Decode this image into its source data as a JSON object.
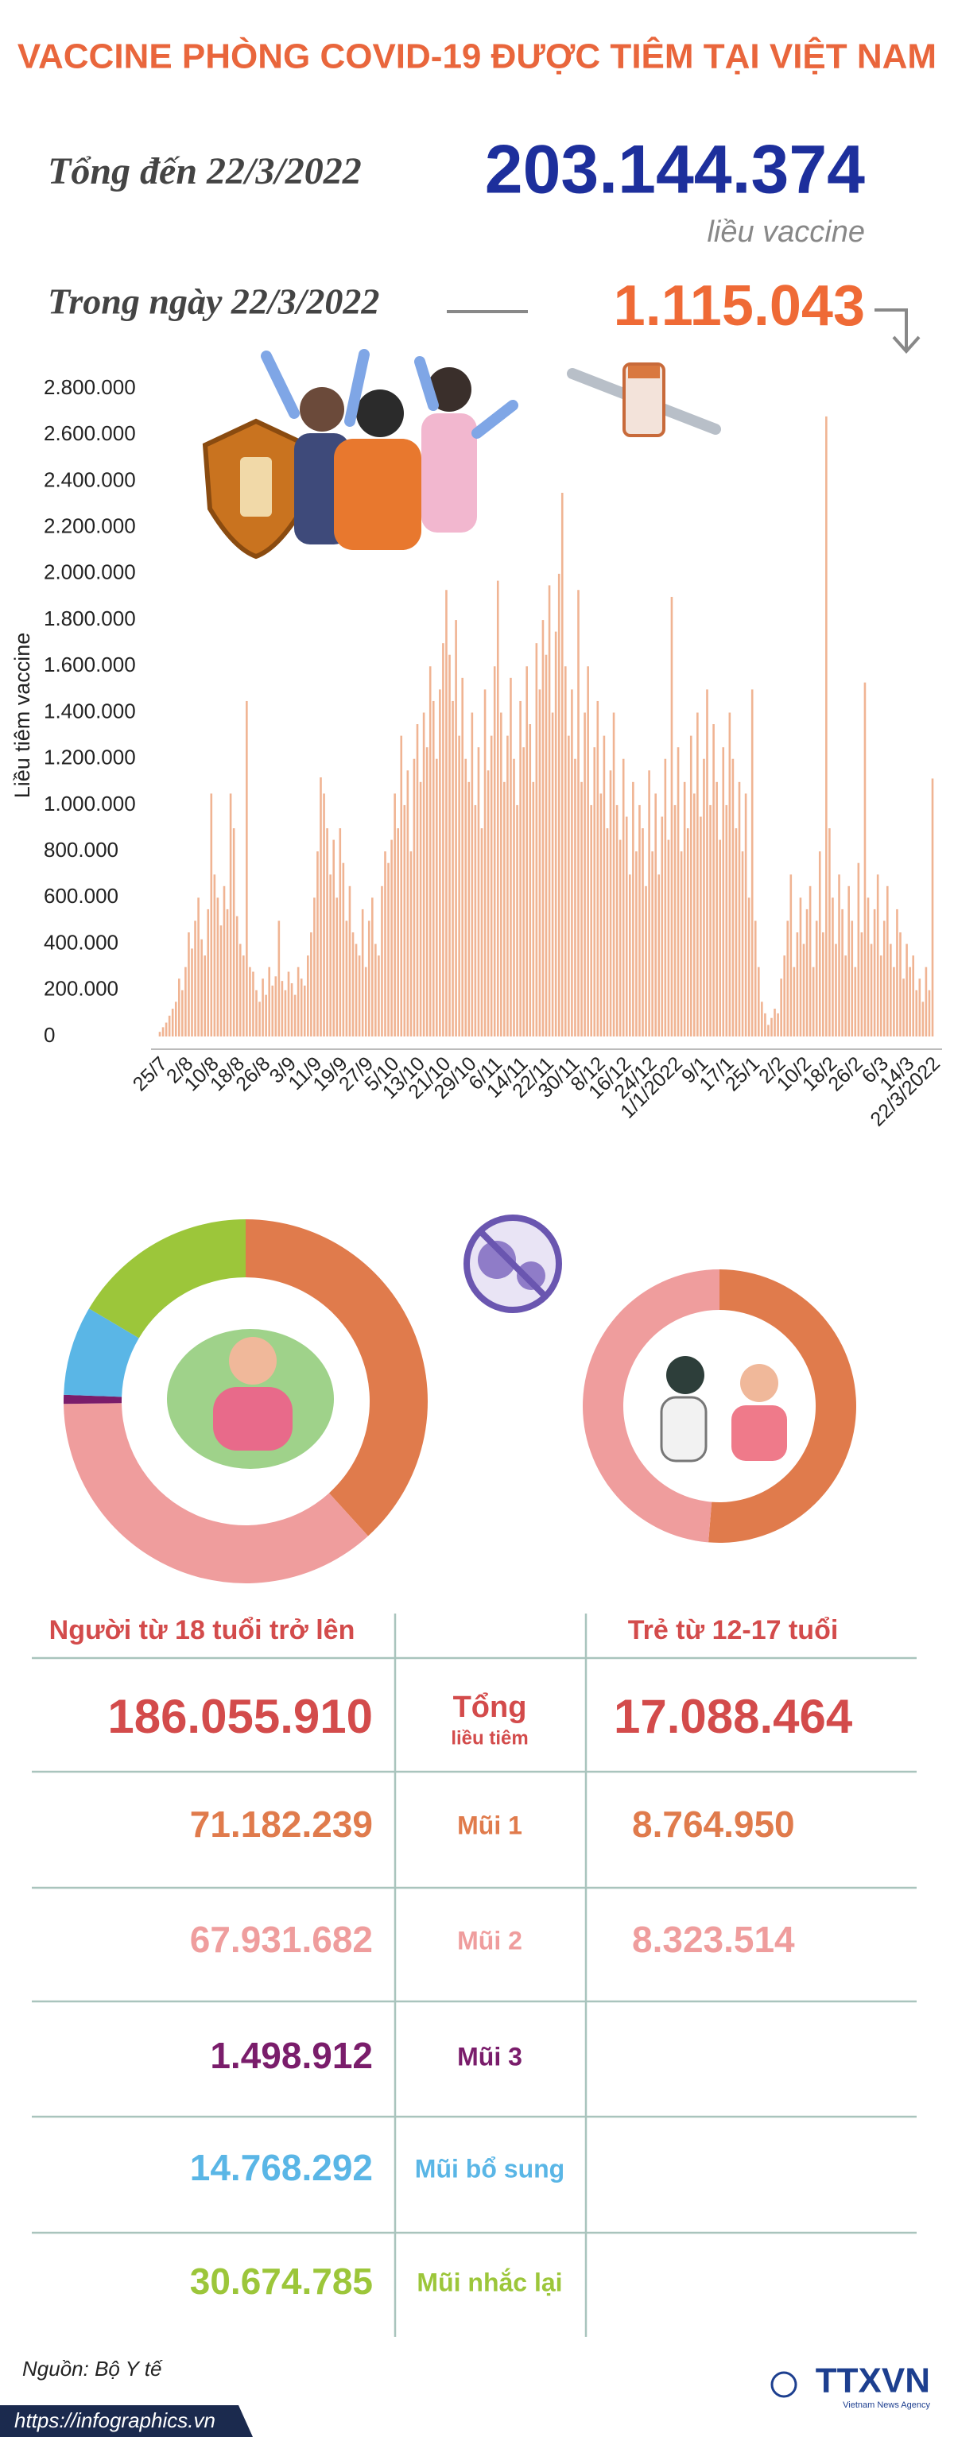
{
  "header": {
    "title": "VACCINE PHÒNG COVID-19 ĐƯỢC TIÊM TẠI VIỆT NAM",
    "total_label": "Tổng đến 22/3/2022",
    "total_value": "203.144.374",
    "total_unit": "liều vaccine",
    "day_label": "Trong ngày 22/3/2022",
    "day_value": "1.115.043"
  },
  "chart_data": {
    "type": "bar",
    "y_label": "Liều tiêm vaccine",
    "color": "#f0b493",
    "categories": [
      "25/7",
      null,
      null,
      null,
      null,
      null,
      null,
      null,
      "2/8",
      null,
      null,
      null,
      null,
      null,
      null,
      null,
      "10/8",
      null,
      null,
      null,
      null,
      null,
      null,
      null,
      "18/8",
      null,
      null,
      null,
      null,
      null,
      null,
      null,
      "26/8",
      null,
      null,
      null,
      null,
      null,
      null,
      null,
      "3/9",
      null,
      null,
      null,
      null,
      null,
      null,
      null,
      "11/9",
      null,
      null,
      null,
      null,
      null,
      null,
      null,
      "19/9",
      null,
      null,
      null,
      null,
      null,
      null,
      null,
      "27/9",
      null,
      null,
      null,
      null,
      null,
      null,
      null,
      "5/10",
      null,
      null,
      null,
      null,
      null,
      null,
      null,
      "13/10",
      null,
      null,
      null,
      null,
      null,
      null,
      null,
      "21/10",
      null,
      null,
      null,
      null,
      null,
      null,
      null,
      "29/10",
      null,
      null,
      null,
      null,
      null,
      null,
      null,
      "6/11",
      null,
      null,
      null,
      null,
      null,
      null,
      null,
      "14/11",
      null,
      null,
      null,
      null,
      null,
      null,
      null,
      "22/11",
      null,
      null,
      null,
      null,
      null,
      null,
      null,
      "30/11",
      null,
      null,
      null,
      null,
      null,
      null,
      null,
      "8/12",
      null,
      null,
      null,
      null,
      null,
      null,
      null,
      "16/12",
      null,
      null,
      null,
      null,
      null,
      null,
      null,
      "24/12",
      null,
      null,
      null,
      null,
      null,
      null,
      null,
      "1/1/2022",
      null,
      null,
      null,
      null,
      null,
      null,
      null,
      "9/1",
      null,
      null,
      null,
      null,
      null,
      null,
      null,
      "17/1",
      null,
      null,
      null,
      null,
      null,
      null,
      null,
      "25/1",
      null,
      null,
      null,
      null,
      null,
      null,
      null,
      "2/2",
      null,
      null,
      null,
      null,
      null,
      null,
      null,
      "10/2",
      null,
      null,
      null,
      null,
      null,
      null,
      null,
      "18/2",
      null,
      null,
      null,
      null,
      null,
      null,
      null,
      "26/2",
      null,
      null,
      null,
      null,
      null,
      null,
      null,
      "6/3",
      null,
      null,
      null,
      null,
      null,
      null,
      null,
      "14/3",
      null,
      null,
      null,
      null,
      null,
      null,
      null,
      "22/3/2022"
    ],
    "values": [
      20000,
      40000,
      60000,
      90000,
      120000,
      150000,
      250000,
      200000,
      300000,
      450000,
      380000,
      500000,
      600000,
      420000,
      350000,
      550000,
      1050000,
      700000,
      600000,
      480000,
      650000,
      550000,
      1050000,
      900000,
      520000,
      400000,
      350000,
      1450000,
      300000,
      280000,
      200000,
      150000,
      250000,
      180000,
      300000,
      220000,
      260000,
      500000,
      240000,
      200000,
      280000,
      230000,
      180000,
      300000,
      250000,
      220000,
      350000,
      450000,
      600000,
      800000,
      1120000,
      1050000,
      900000,
      700000,
      850000,
      600000,
      900000,
      750000,
      500000,
      650000,
      450000,
      400000,
      350000,
      550000,
      300000,
      500000,
      600000,
      400000,
      350000,
      650000,
      800000,
      750000,
      850000,
      1050000,
      900000,
      1300000,
      1000000,
      1150000,
      800000,
      1200000,
      1350000,
      1100000,
      1400000,
      1250000,
      1600000,
      1450000,
      1200000,
      1500000,
      1700000,
      1930000,
      1650000,
      1450000,
      1800000,
      1300000,
      1550000,
      1200000,
      1100000,
      1400000,
      1000000,
      1250000,
      900000,
      1500000,
      1150000,
      1300000,
      1600000,
      1970000,
      1400000,
      1100000,
      1300000,
      1550000,
      1200000,
      1000000,
      1450000,
      1250000,
      1600000,
      1350000,
      1100000,
      1700000,
      1500000,
      1800000,
      1650000,
      1950000,
      1400000,
      1750000,
      2000000,
      2350000,
      1600000,
      1300000,
      1500000,
      1200000,
      1930000,
      1100000,
      1400000,
      1600000,
      1000000,
      1250000,
      1450000,
      1050000,
      1300000,
      900000,
      1150000,
      1400000,
      1000000,
      850000,
      1200000,
      950000,
      700000,
      1100000,
      800000,
      1000000,
      900000,
      650000,
      1150000,
      800000,
      1050000,
      700000,
      950000,
      1200000,
      850000,
      1900000,
      1000000,
      1250000,
      800000,
      1100000,
      900000,
      1300000,
      1050000,
      1400000,
      950000,
      1200000,
      1500000,
      1000000,
      1350000,
      1100000,
      850000,
      1250000,
      1000000,
      1400000,
      1200000,
      900000,
      1100000,
      800000,
      1050000,
      600000,
      1500000,
      500000,
      300000,
      150000,
      100000,
      50000,
      80000,
      120000,
      100000,
      250000,
      350000,
      500000,
      700000,
      300000,
      450000,
      600000,
      400000,
      550000,
      650000,
      300000,
      500000,
      800000,
      450000,
      2680000,
      900000,
      600000,
      400000,
      700000,
      550000,
      350000,
      650000,
      500000,
      300000,
      750000,
      450000,
      1530000,
      600000,
      400000,
      550000,
      700000,
      350000,
      500000,
      650000,
      400000,
      300000,
      550000,
      450000,
      250000,
      400000,
      300000,
      350000,
      200000,
      250000,
      150000,
      300000,
      200000,
      1115043
    ],
    "ylim": [
      0,
      2800000
    ],
    "yticks": [
      0,
      {
        "value": 200000,
        "label": "200.000"
      },
      {
        "value": 400000,
        "label": "400.000"
      },
      {
        "value": 600000,
        "label": "600.000"
      },
      {
        "value": 800000,
        "label": "800.000"
      },
      {
        "value": 1000000,
        "label": "1.000.000"
      },
      {
        "value": 1200000,
        "label": "1.200.000"
      },
      {
        "value": 1400000,
        "label": "1.400.000"
      },
      {
        "value": 1600000,
        "label": "1.600.000"
      },
      {
        "value": 1800000,
        "label": "1.800.000"
      },
      {
        "value": 2000000,
        "label": "2.000.000"
      },
      {
        "value": 2200000,
        "label": "2.200.000"
      },
      {
        "value": 2400000,
        "label": "2.400.000"
      },
      {
        "value": 2600000,
        "label": "2.600.000"
      },
      {
        "value": 2800000,
        "label": "2.800.000"
      }
    ]
  },
  "table": {
    "headers": [
      "Người từ 18 tuổi trở lên",
      "Trẻ từ 12-17 tuổi"
    ],
    "rows": [
      {
        "label": "Tổng",
        "sublabel": "liều tiêm",
        "color": "#d34b4b",
        "adult": {
          "value": 186055910,
          "label": "186.055.910"
        },
        "child": {
          "value": 17088464,
          "label": "17.088.464"
        }
      },
      {
        "label": "Mũi 1",
        "color": "#e07b4c",
        "adult": {
          "value": 71182239,
          "label": "71.182.239"
        },
        "child": {
          "value": 8764950,
          "label": "8.764.950"
        }
      },
      {
        "label": "Mũi 2",
        "color": "#ef9d9d",
        "adult": {
          "value": 67931682,
          "label": "67.931.682"
        },
        "child": {
          "value": 8323514,
          "label": "8.323.514"
        }
      },
      {
        "label": "Mũi 3",
        "color": "#7a1d6b",
        "adult": {
          "value": 1498912,
          "label": "1.498.912"
        }
      },
      {
        "label": "Mũi bổ sung",
        "color": "#5ab6e6",
        "adult": {
          "value": 14768292,
          "label": "14.768.292"
        }
      },
      {
        "label": "Mũi nhắc lại",
        "color": "#9cc63a",
        "adult": {
          "value": 30674785,
          "label": "30.674.785"
        }
      }
    ]
  },
  "footer": {
    "source": "Nguồn: Bộ Y tế",
    "url": "https://infographics.vn",
    "brand": "TTXVN",
    "brand_sub": "Vietnam News Agency"
  }
}
